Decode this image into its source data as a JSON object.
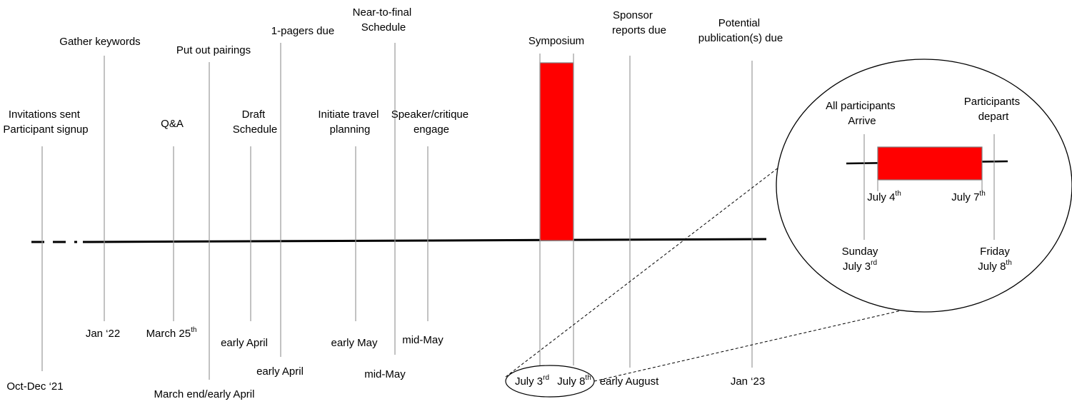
{
  "timeline": {
    "events": [
      {
        "id": "invitations",
        "label_lines": [
          "Invitations sent",
          "Participant signup"
        ],
        "date": "Oct-Dec ‘21"
      },
      {
        "id": "keywords",
        "label_lines": [
          "Gather keywords"
        ],
        "date": "Jan ‘22"
      },
      {
        "id": "qa",
        "label_lines": [
          "Q&A"
        ],
        "date": "March 25",
        "date_sup": "th"
      },
      {
        "id": "pairings",
        "label_lines": [
          "Put out pairings"
        ],
        "date": "March end/early April"
      },
      {
        "id": "draft",
        "label_lines": [
          "Draft",
          "Schedule"
        ],
        "date": "early April"
      },
      {
        "id": "onepagers",
        "label_lines": [
          "1-pagers due"
        ],
        "date": "early April"
      },
      {
        "id": "travel",
        "label_lines": [
          "Initiate travel",
          "planning"
        ],
        "date": "early May"
      },
      {
        "id": "neartofinal",
        "label_lines": [
          "Near-to-final",
          "Schedule"
        ],
        "date": "mid-May"
      },
      {
        "id": "speaker",
        "label_lines": [
          "Speaker/critique",
          "engage"
        ],
        "date": "mid-May"
      },
      {
        "id": "symposium",
        "label_lines": [
          "Symposium"
        ],
        "date_start": "July 3",
        "date_start_sup": "rd",
        "date_end": "July 8",
        "date_end_sup": "th"
      },
      {
        "id": "sponsor",
        "label_lines": [
          "Sponsor",
          "reports due"
        ],
        "date": "early August"
      },
      {
        "id": "publication",
        "label_lines": [
          "Potential",
          "publication(s) due"
        ],
        "date": "Jan ‘23"
      }
    ]
  },
  "detail": {
    "arrive": {
      "label_lines": [
        "All participants",
        "Arrive"
      ],
      "day": "Sunday",
      "date": "July 3",
      "date_sup": "rd"
    },
    "start": {
      "date": "July 4",
      "date_sup": "th"
    },
    "end": {
      "date": "July 7",
      "date_sup": "th"
    },
    "depart": {
      "label_lines": [
        "Participants",
        "depart"
      ],
      "day": "Friday",
      "date": "July 8",
      "date_sup": "th"
    }
  },
  "colors": {
    "bar": "#ff0000",
    "bar_outline": "#808080",
    "axis": "#000000",
    "tick": "#9a9a9a"
  }
}
